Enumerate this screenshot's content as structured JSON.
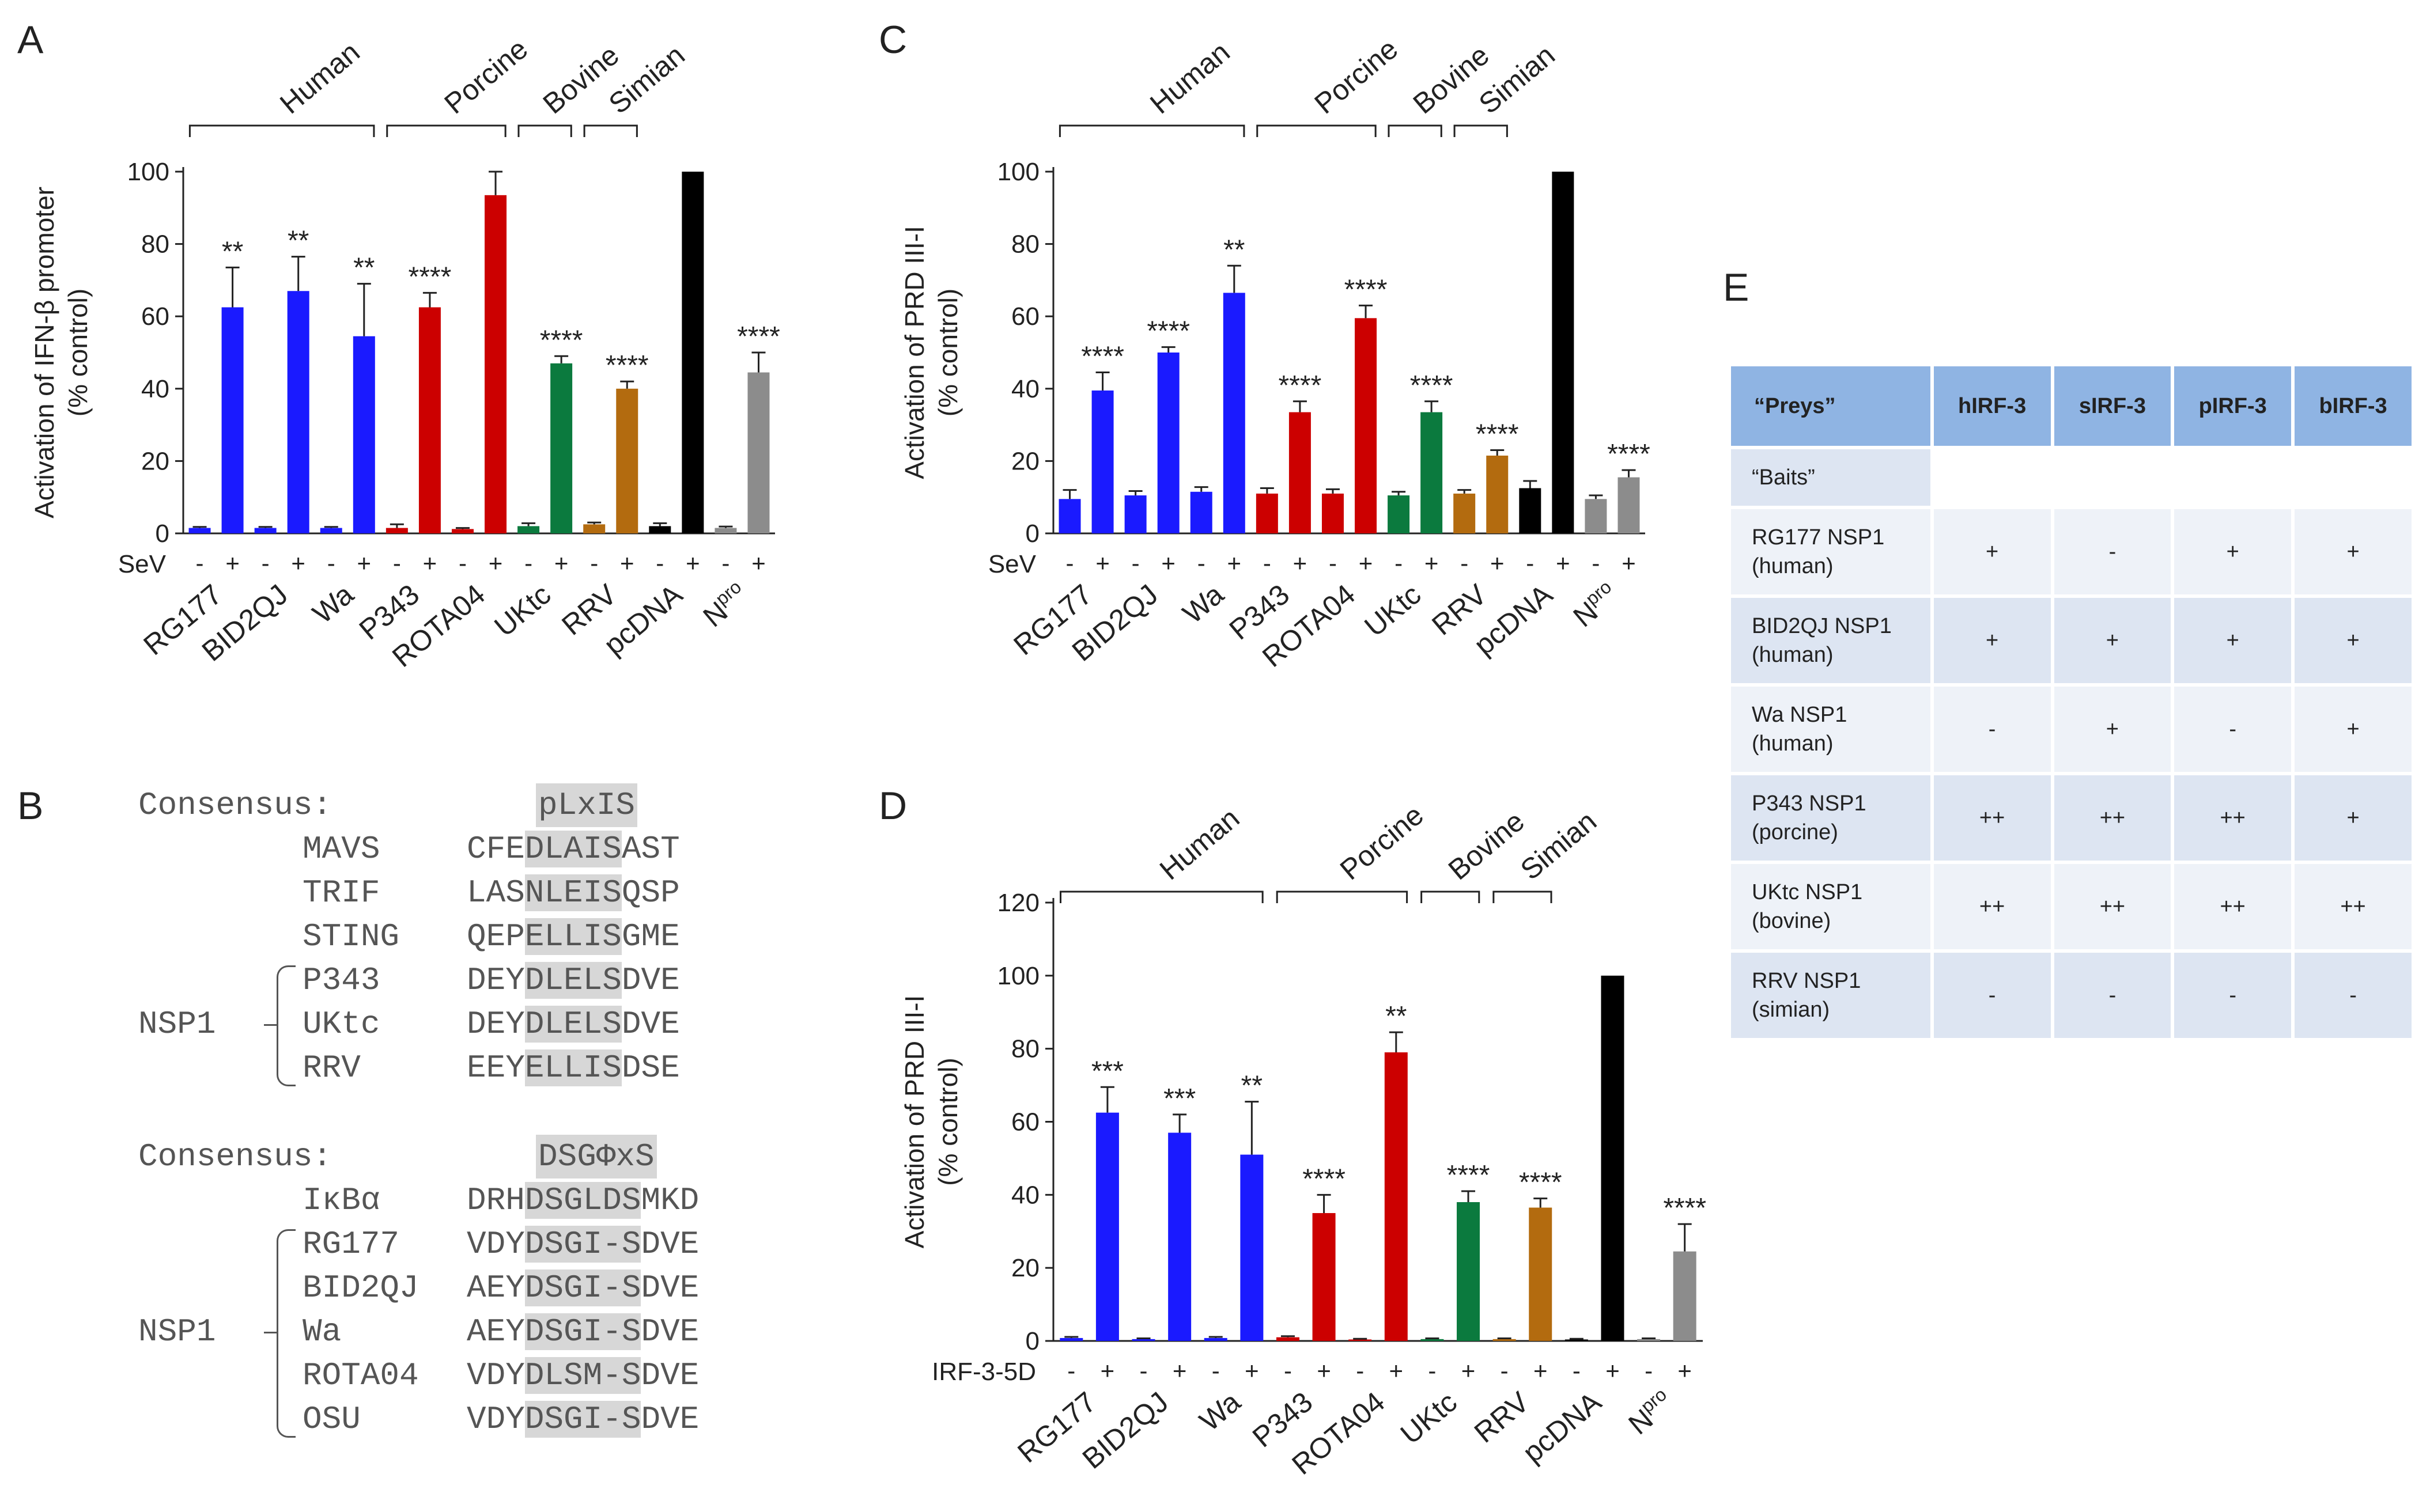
{
  "panels": {
    "a": "A",
    "b": "B",
    "c": "C",
    "d": "D",
    "e": "E"
  },
  "colors": {
    "blue": "#1a1aff",
    "red": "#cc0000",
    "green": "#0b7a3e",
    "brown": "#b36b0f",
    "black": "#000000",
    "gray": "#8c8c8c"
  },
  "chart_data": [
    {
      "id": "A",
      "type": "bar",
      "ylabel": "Activation of IFN-β promoter (% control)",
      "ylim": [
        0,
        100
      ],
      "yticks": [
        "0",
        "20",
        "40",
        "60",
        "80",
        "100"
      ],
      "treatment_label": "SeV",
      "treatment_signs": [
        "-",
        "+"
      ],
      "categories": [
        "RG177",
        "BID2QJ",
        "Wa",
        "P343",
        "ROTA04",
        "UKtc",
        "RRV",
        "pcDNA",
        "Npro"
      ],
      "category_colors": [
        "blue",
        "blue",
        "blue",
        "red",
        "red",
        "green",
        "brown",
        "black",
        "gray"
      ],
      "series": [
        {
          "treatment": "-",
          "values": [
            1.5,
            1.5,
            1.5,
            1.5,
            1.2,
            2,
            2.5,
            2,
            1.5
          ],
          "errors": [
            0.3,
            0.3,
            0.3,
            1,
            0.3,
            0.8,
            0.5,
            0.8,
            0.4
          ]
        },
        {
          "treatment": "+",
          "values": [
            62.5,
            67,
            54.5,
            62.5,
            93.5,
            47,
            40,
            100,
            44.5
          ],
          "errors": [
            11,
            9.5,
            14.5,
            4,
            6.5,
            2,
            2,
            0,
            5.5
          ]
        }
      ],
      "significance": [
        "**",
        "**",
        "**",
        "****",
        "",
        "****",
        "****",
        "",
        "****"
      ],
      "groups": [
        {
          "name": "Human",
          "from": 0,
          "to": 2
        },
        {
          "name": "Porcine",
          "from": 3,
          "to": 4
        },
        {
          "name": "Bovine",
          "from": 5,
          "to": 5
        },
        {
          "name": "Simian",
          "from": 6,
          "to": 6
        }
      ]
    },
    {
      "id": "C",
      "type": "bar",
      "ylabel": "Activation of PRD III-I (% control)",
      "ylim": [
        0,
        100
      ],
      "yticks": [
        "0",
        "20",
        "40",
        "60",
        "80",
        "100"
      ],
      "treatment_label": "SeV",
      "treatment_signs": [
        "-",
        "+"
      ],
      "categories": [
        "RG177",
        "BID2QJ",
        "Wa",
        "P343",
        "ROTA04",
        "UKtc",
        "RRV",
        "pcDNA",
        "Npro"
      ],
      "category_colors": [
        "blue",
        "blue",
        "blue",
        "red",
        "red",
        "green",
        "brown",
        "black",
        "gray"
      ],
      "series": [
        {
          "treatment": "-",
          "values": [
            9.5,
            10.5,
            11.5,
            11,
            11,
            10.5,
            11,
            12.5,
            9.5
          ],
          "errors": [
            2.5,
            1.2,
            1.3,
            1.5,
            1.2,
            1,
            1,
            2,
            1
          ]
        },
        {
          "treatment": "+",
          "values": [
            39.5,
            50,
            66.5,
            33.5,
            59.5,
            33.5,
            21.5,
            100,
            15.5
          ],
          "errors": [
            5,
            1.5,
            7.5,
            3,
            3.5,
            3,
            1.5,
            0,
            2
          ]
        }
      ],
      "significance": [
        "****",
        "****",
        "**",
        "****",
        "****",
        "****",
        "****",
        "",
        "****"
      ],
      "groups": [
        {
          "name": "Human",
          "from": 0,
          "to": 2
        },
        {
          "name": "Porcine",
          "from": 3,
          "to": 4
        },
        {
          "name": "Bovine",
          "from": 5,
          "to": 5
        },
        {
          "name": "Simian",
          "from": 6,
          "to": 6
        }
      ]
    },
    {
      "id": "D",
      "type": "bar",
      "ylabel": "Activation of PRD III-I (% control)",
      "ylim": [
        0,
        120
      ],
      "yticks": [
        "0",
        "20",
        "40",
        "60",
        "80",
        "100",
        "120"
      ],
      "treatment_label": "IRF-3-5D",
      "treatment_signs": [
        "-",
        "+"
      ],
      "categories": [
        "RG177",
        "BID2QJ",
        "Wa",
        "P343",
        "ROTA04",
        "UKtc",
        "RRV",
        "pcDNA",
        "Npro"
      ],
      "category_colors": [
        "blue",
        "blue",
        "blue",
        "red",
        "red",
        "green",
        "brown",
        "black",
        "gray"
      ],
      "series": [
        {
          "treatment": "-",
          "values": [
            0.8,
            0.5,
            0.8,
            1,
            0.4,
            0.5,
            0.5,
            0.4,
            0.5
          ],
          "errors": [
            0.3,
            0.2,
            0.3,
            0.3,
            0.2,
            0.2,
            0.2,
            0.2,
            0.2
          ]
        },
        {
          "treatment": "+",
          "values": [
            62.5,
            57,
            51,
            35,
            79,
            38,
            36.5,
            100,
            24.5
          ],
          "errors": [
            7,
            5,
            14.5,
            5,
            5.5,
            3,
            2.5,
            0,
            7.5
          ]
        }
      ],
      "significance": [
        "***",
        "***",
        "**",
        "****",
        "**",
        "****",
        "****",
        "",
        "****"
      ],
      "groups": [
        {
          "name": "Human",
          "from": 0,
          "to": 2
        },
        {
          "name": "Porcine",
          "from": 3,
          "to": 4
        },
        {
          "name": "Bovine",
          "from": 5,
          "to": 5
        },
        {
          "name": "Simian",
          "from": 6,
          "to": 6
        }
      ]
    }
  ],
  "sequence_panel": {
    "blocks": [
      {
        "consensus_title": "Consensus:",
        "consensus_motif": "pLxIS",
        "rows": [
          {
            "name": "MAVS",
            "pre": "CFE",
            "motif": "DLAIS",
            "post": "AST"
          },
          {
            "name": "TRIF",
            "pre": "LAS",
            "motif": "NLEIS",
            "post": "QSP"
          },
          {
            "name": "STING",
            "pre": "QEP",
            "motif": "ELLIS",
            "post": "GME"
          },
          {
            "name": "P343",
            "pre": "DEY",
            "motif": "DLELS",
            "post": "DVE"
          },
          {
            "name": "UKtc",
            "pre": "DEY",
            "motif": "DLELS",
            "post": "DVE"
          },
          {
            "name": "RRV",
            "pre": "EEY",
            "motif": "ELLIS",
            "post": "DSE"
          }
        ],
        "group_label": "NSP1",
        "group_from": 3,
        "group_to": 5
      },
      {
        "consensus_title": "Consensus:",
        "consensus_motif": "DSGΦxS",
        "rows": [
          {
            "name": "IκBα",
            "pre": "DRH",
            "motif": "DSGLDS",
            "post": "MKD"
          },
          {
            "name": "RG177",
            "pre": "VDY",
            "motif": "DSGI-S",
            "post": "DVE"
          },
          {
            "name": "BID2QJ",
            "pre": "AEY",
            "motif": "DSGI-S",
            "post": "DVE"
          },
          {
            "name": "Wa",
            "pre": "AEY",
            "motif": "DSGI-S",
            "post": "DVE"
          },
          {
            "name": "ROTA04",
            "pre": "VDY",
            "motif": "DLSM-S",
            "post": "DVE"
          },
          {
            "name": "OSU",
            "pre": "VDY",
            "motif": "DSGI-S",
            "post": "DVE"
          }
        ],
        "group_label": "NSP1",
        "group_from": 1,
        "group_to": 5
      }
    ]
  },
  "table": {
    "header": [
      "“Preys”",
      "hIRF-3",
      "sIRF-3",
      "pIRF-3",
      "bIRF-3"
    ],
    "baits_label": "“Baits”",
    "rows": [
      {
        "bait": "RG177 NSP1",
        "host": "(human)",
        "values": [
          "+",
          "-",
          "+",
          "+"
        ]
      },
      {
        "bait": "BID2QJ NSP1",
        "host": "(human)",
        "values": [
          "+",
          "+",
          "+",
          "+"
        ]
      },
      {
        "bait": "Wa NSP1",
        "host": "(human)",
        "values": [
          "-",
          "+",
          "-",
          "+"
        ]
      },
      {
        "bait": "P343 NSP1",
        "host": "(porcine)",
        "values": [
          "++",
          "++",
          "++",
          "+"
        ]
      },
      {
        "bait": "UKtc NSP1",
        "host": "(bovine)",
        "values": [
          "++",
          "++",
          "++",
          "++"
        ]
      },
      {
        "bait": "RRV NSP1",
        "host": "(simian)",
        "values": [
          "-",
          "-",
          "-",
          "-"
        ]
      }
    ]
  }
}
